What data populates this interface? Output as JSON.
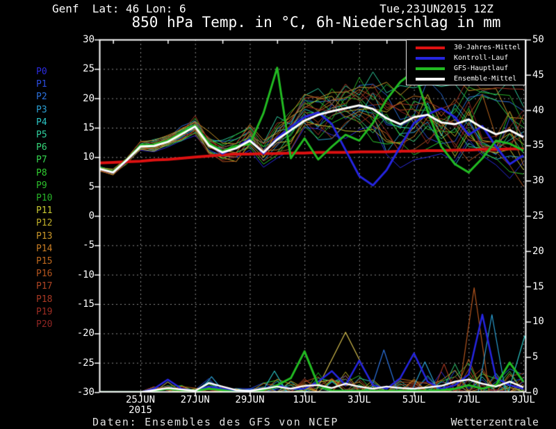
{
  "header": {
    "station_line": "Genf  Lat: 46 Lon: 6",
    "datetime": "Tue,23JUN2015 12Z"
  },
  "title": "850 hPa Temp. in °C, 6h-Niederschlag in mm",
  "footer": {
    "source": "Daten: Ensembles des GFS von NCEP",
    "brand": "Wetterzentrale"
  },
  "legend": [
    {
      "label": "30-Jahres-Mittel",
      "color": "#dd1111"
    },
    {
      "label": "Kontroll-Lauf",
      "color": "#2525e0"
    },
    {
      "label": "GFS-Hauptlauf",
      "color": "#22bb22"
    },
    {
      "label": "Ensemble-Mittel",
      "color": "#ffffff"
    }
  ],
  "members": [
    {
      "label": "P0",
      "color": "#2b2be0"
    },
    {
      "label": "P1",
      "color": "#2b4ce0"
    },
    {
      "label": "P2",
      "color": "#2b70dc"
    },
    {
      "label": "P3",
      "color": "#2ba0d4"
    },
    {
      "label": "P4",
      "color": "#2bc4c4"
    },
    {
      "label": "P5",
      "color": "#2fcf9f"
    },
    {
      "label": "P6",
      "color": "#35d678"
    },
    {
      "label": "P7",
      "color": "#35d64f"
    },
    {
      "label": "P8",
      "color": "#30cc30"
    },
    {
      "label": "P9",
      "color": "#2cbf2c"
    },
    {
      "label": "P10",
      "color": "#28b428"
    },
    {
      "label": "P11",
      "color": "#c9c932"
    },
    {
      "label": "P12",
      "color": "#bfae28"
    },
    {
      "label": "P13",
      "color": "#c99628"
    },
    {
      "label": "P14",
      "color": "#c97d23"
    },
    {
      "label": "P15",
      "color": "#bf691e"
    },
    {
      "label": "P16",
      "color": "#b4551e"
    },
    {
      "label": "P17",
      "color": "#b04423"
    },
    {
      "label": "P18",
      "color": "#a83823"
    },
    {
      "label": "P19",
      "color": "#9e2d23"
    },
    {
      "label": "P20",
      "color": "#8f2523"
    }
  ],
  "colors": {
    "background": "#000000",
    "grid": "#8f8f8f",
    "frame": "#ffffff",
    "climate": "#dd1111",
    "control": "#2525e0",
    "gfs": "#22bb22",
    "mean": "#ffffff"
  },
  "chart_data": {
    "type": "line",
    "title": "850 hPa Temp. in °C, 6h-Niederschlag in mm",
    "x_axis": {
      "start": "23JUN2015 12Z",
      "span_days": 15.6,
      "sample_step_days": 0.5,
      "tick_labels": [
        {
          "label": "25JUN",
          "sublabel": "2015",
          "t": 1.5
        },
        {
          "label": "27JUN",
          "t": 3.5
        },
        {
          "label": "29JUN",
          "t": 5.5
        },
        {
          "label": "1JUL",
          "t": 7.5
        },
        {
          "label": "3JUL",
          "t": 9.5
        },
        {
          "label": "5JUL",
          "t": 11.5
        },
        {
          "label": "7JUL",
          "t": 13.5
        },
        {
          "label": "9JUL",
          "t": 15.5
        }
      ],
      "grid_every_days": 2,
      "top_minor_ticks_t": [
        0.5,
        2.5,
        4.5,
        6.5,
        8.5,
        10.5,
        12.5,
        14.5
      ]
    },
    "y_axis_left": {
      "unit": "°C",
      "min": -30,
      "max": 30,
      "step": 5,
      "ticks": [
        30,
        25,
        20,
        15,
        10,
        5,
        0,
        -5,
        -10,
        -15,
        -20,
        -25,
        -30
      ]
    },
    "y_axis_right": {
      "unit": "mm",
      "min": 0,
      "max": 50,
      "step": 5,
      "ticks": [
        50,
        45,
        40,
        35,
        30,
        25,
        20,
        15,
        10,
        5,
        0
      ]
    },
    "grid": "dashed",
    "legend_position": "top-right",
    "series": [
      {
        "name": "30-Jahres-Mittel",
        "axis": "temp",
        "color": "#dd1111",
        "width": 4,
        "values": [
          9.0,
          9.1,
          9.2,
          9.3,
          9.5,
          9.6,
          9.8,
          10.0,
          10.2,
          10.4,
          10.5,
          10.5,
          10.6,
          10.6,
          10.7,
          10.7,
          10.8,
          10.8,
          10.8,
          10.9,
          10.9,
          10.9,
          11.0,
          11.0,
          11.1,
          11.1,
          11.2,
          11.2,
          11.3,
          11.3,
          11.4,
          11.4
        ]
      },
      {
        "name": "Kontroll-Lauf",
        "axis": "temp",
        "color": "#2525e0",
        "width": 3,
        "values": [
          8.0,
          7.4,
          9.5,
          11.9,
          12.0,
          12.7,
          14.0,
          15.3,
          12.2,
          10.6,
          11.7,
          13.0,
          10.6,
          13.3,
          15.1,
          16.8,
          17.6,
          15.6,
          11.2,
          6.8,
          5.2,
          7.8,
          11.8,
          15.8,
          17.3,
          18.3,
          16.8,
          13.8,
          15.3,
          11.8,
          8.8,
          10.3
        ]
      },
      {
        "name": "GFS-Hauptlauf",
        "axis": "temp",
        "color": "#22bb22",
        "width": 3,
        "values": [
          8.0,
          7.5,
          9.6,
          12.0,
          12.1,
          12.8,
          14.2,
          15.4,
          12.4,
          11.0,
          11.9,
          12.2,
          17.5,
          25.2,
          9.8,
          13.2,
          9.6,
          11.8,
          13.8,
          12.8,
          15.8,
          19.8,
          22.8,
          24.6,
          17.8,
          11.8,
          8.8,
          7.4,
          9.8,
          12.8,
          12.3,
          11.1
        ]
      },
      {
        "name": "Ensemble-Mittel",
        "axis": "temp",
        "color": "#ffffff",
        "width": 3,
        "values": [
          8.0,
          7.4,
          9.5,
          11.8,
          11.9,
          12.6,
          13.9,
          15.2,
          12.0,
          10.8,
          11.5,
          12.8,
          10.8,
          13.0,
          14.6,
          16.2,
          17.2,
          17.8,
          18.3,
          18.8,
          18.2,
          16.6,
          15.6,
          16.8,
          17.2,
          15.9,
          15.6,
          16.4,
          15.0,
          13.9,
          14.6,
          13.4
        ]
      },
      {
        "name": "Kontroll-Lauf Niederschlag",
        "axis": "precip",
        "color": "#2525e0",
        "width": 2.5,
        "values": [
          0,
          0,
          0,
          0,
          0.5,
          1.8,
          0.5,
          0.2,
          0.8,
          0.5,
          0.2,
          0.2,
          0.5,
          1.0,
          0.5,
          0.5,
          1.5,
          3.0,
          1.0,
          4.5,
          1.0,
          0.5,
          2.0,
          5.5,
          1.5,
          0.5,
          1.0,
          2.5,
          11.0,
          2.0,
          1.0,
          0.5
        ]
      },
      {
        "name": "GFS-Hauptlauf Niederschlag",
        "axis": "precip",
        "color": "#22bb22",
        "width": 3,
        "values": [
          0,
          0,
          0,
          0,
          0.2,
          0.5,
          0.3,
          0.2,
          0.5,
          0.3,
          0,
          0,
          0.3,
          1.0,
          2.0,
          5.8,
          1.0,
          0.2,
          0.2,
          0.2,
          0.2,
          0.2,
          0.2,
          0.2,
          0.2,
          0.3,
          0.5,
          1.0,
          0.5,
          1.0,
          4.2,
          1.5
        ]
      },
      {
        "name": "Ensemble-Mittel Niederschlag",
        "axis": "precip",
        "color": "#ffffff",
        "width": 2.5,
        "values": [
          0,
          0,
          0,
          0,
          0.3,
          0.6,
          0.4,
          0.2,
          1.3,
          0.8,
          0.3,
          0.2,
          0.5,
          0.8,
          0.5,
          0.9,
          1.0,
          0.6,
          1.2,
          0.8,
          0.5,
          0.8,
          0.6,
          0.5,
          0.7,
          0.9,
          1.5,
          1.8,
          1.2,
          0.8,
          1.5,
          0.7
        ]
      }
    ],
    "ensemble_members": {
      "count": 21,
      "temp_spread": [
        0.3,
        0.4,
        0.5,
        0.6,
        0.8,
        1.0,
        1.2,
        1.4,
        1.6,
        1.8,
        2.0,
        2.2,
        2.5,
        2.8,
        3.0,
        3.2,
        3.5,
        3.8,
        4.0,
        4.2,
        4.5,
        4.8,
        5.0,
        5.2,
        5.5,
        5.6,
        5.8,
        6.0,
        6.0,
        6.2,
        6.3,
        6.5
      ],
      "precip_noise": [
        0,
        0,
        0,
        0,
        0.5,
        0.8,
        0.5,
        0.3,
        1.0,
        0.8,
        0.3,
        0.3,
        0.8,
        1.0,
        0.8,
        1.0,
        1.5,
        1.0,
        1.5,
        1.2,
        1.0,
        1.0,
        1.0,
        1.0,
        1.2,
        1.5,
        2.0,
        2.5,
        2.0,
        1.5,
        2.0,
        1.5
      ]
    },
    "precip_spikes": [
      {
        "t": 4.1,
        "peak": 2.2,
        "w": 0.45,
        "color": "#2ba0d4"
      },
      {
        "t": 6.4,
        "peak": 3.0,
        "w": 0.45,
        "color": "#2bc4c4"
      },
      {
        "t": 9.0,
        "peak": 8.5,
        "w": 1.1,
        "color": "#c9b44a"
      },
      {
        "t": 10.4,
        "peak": 6.0,
        "w": 0.5,
        "color": "#2b70dc"
      },
      {
        "t": 11.9,
        "peak": 4.3,
        "w": 0.5,
        "color": "#2ba0d4"
      },
      {
        "t": 12.6,
        "peak": 4.0,
        "w": 0.4,
        "color": "#a83823"
      },
      {
        "t": 13.7,
        "peak": 14.8,
        "w": 0.55,
        "color": "#b4551e"
      },
      {
        "t": 14.35,
        "peak": 11.0,
        "w": 0.5,
        "color": "#2ba0d4"
      },
      {
        "t": 15.55,
        "peak": 8.0,
        "w": 0.6,
        "color": "#2bc4c4"
      }
    ]
  }
}
